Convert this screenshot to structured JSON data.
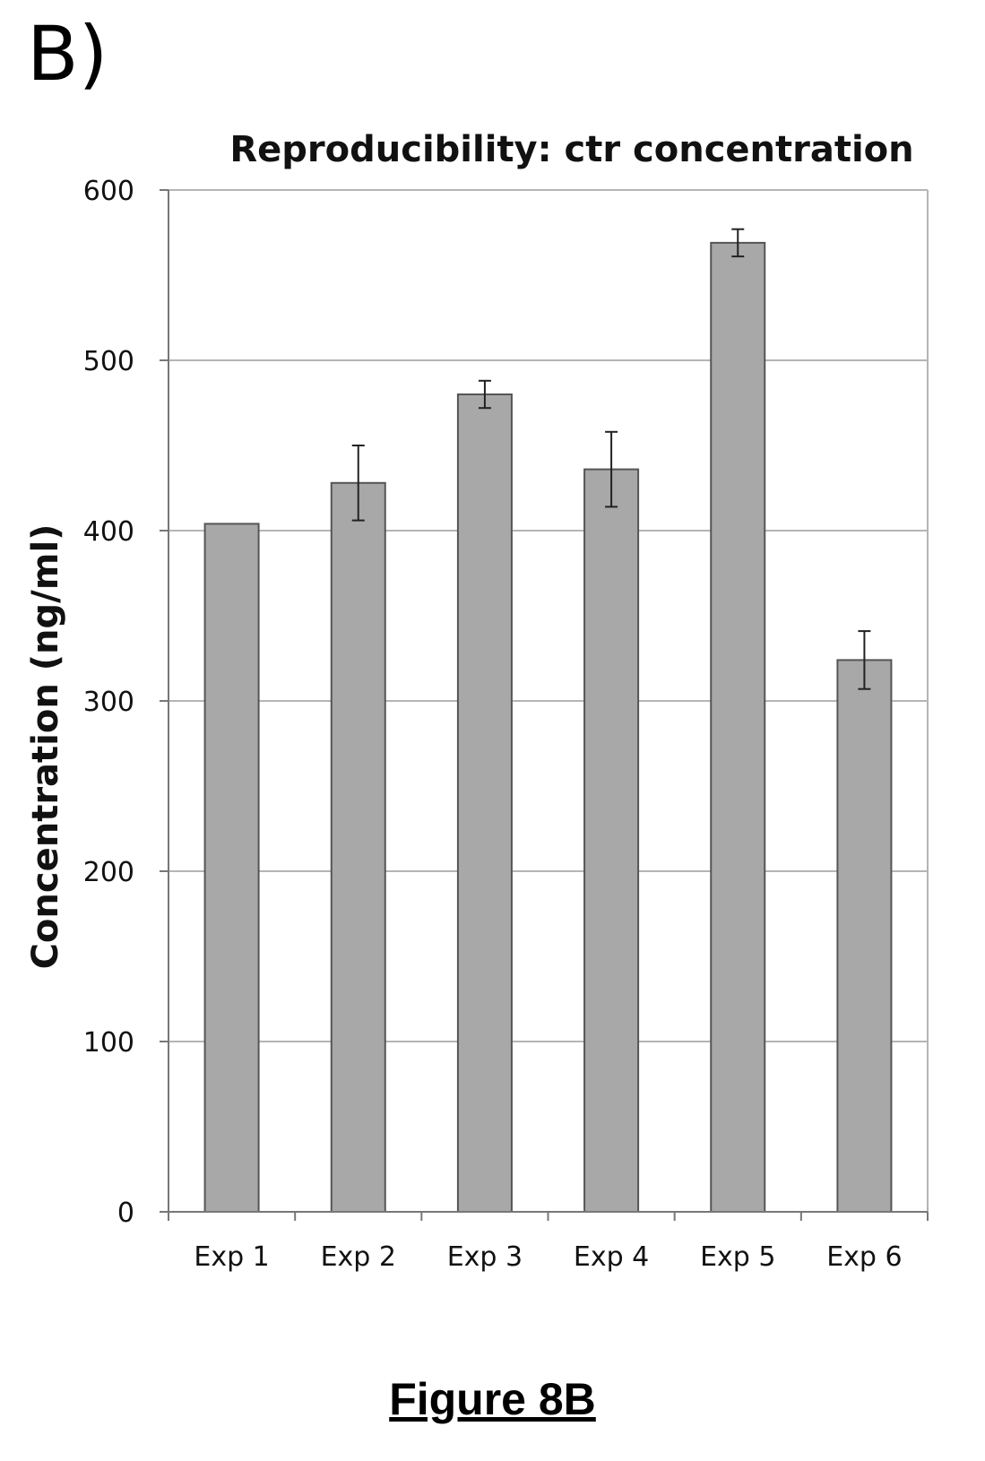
{
  "panel_label": "B)",
  "figure_caption": "Figure 8B",
  "colors": {
    "bar_fill": "#a8a8a8",
    "bar_stroke": "#555555",
    "grid": "#b5b5b5",
    "axis": "#777777"
  },
  "chart_data": {
    "type": "bar",
    "title": "Reproducibility: ctr concentration",
    "xlabel": "",
    "ylabel": "Concentration (ng/ml)",
    "categories": [
      "Exp 1",
      "Exp 2",
      "Exp 3",
      "Exp 4",
      "Exp 5",
      "Exp 6"
    ],
    "values": [
      404,
      428,
      480,
      436,
      569,
      324
    ],
    "errors": [
      0,
      22,
      8,
      22,
      8,
      17
    ],
    "ylim": [
      0,
      600
    ],
    "yticks": [
      "0",
      "100",
      "200",
      "300",
      "400",
      "500",
      "600"
    ],
    "grid": true,
    "legend": "none"
  }
}
